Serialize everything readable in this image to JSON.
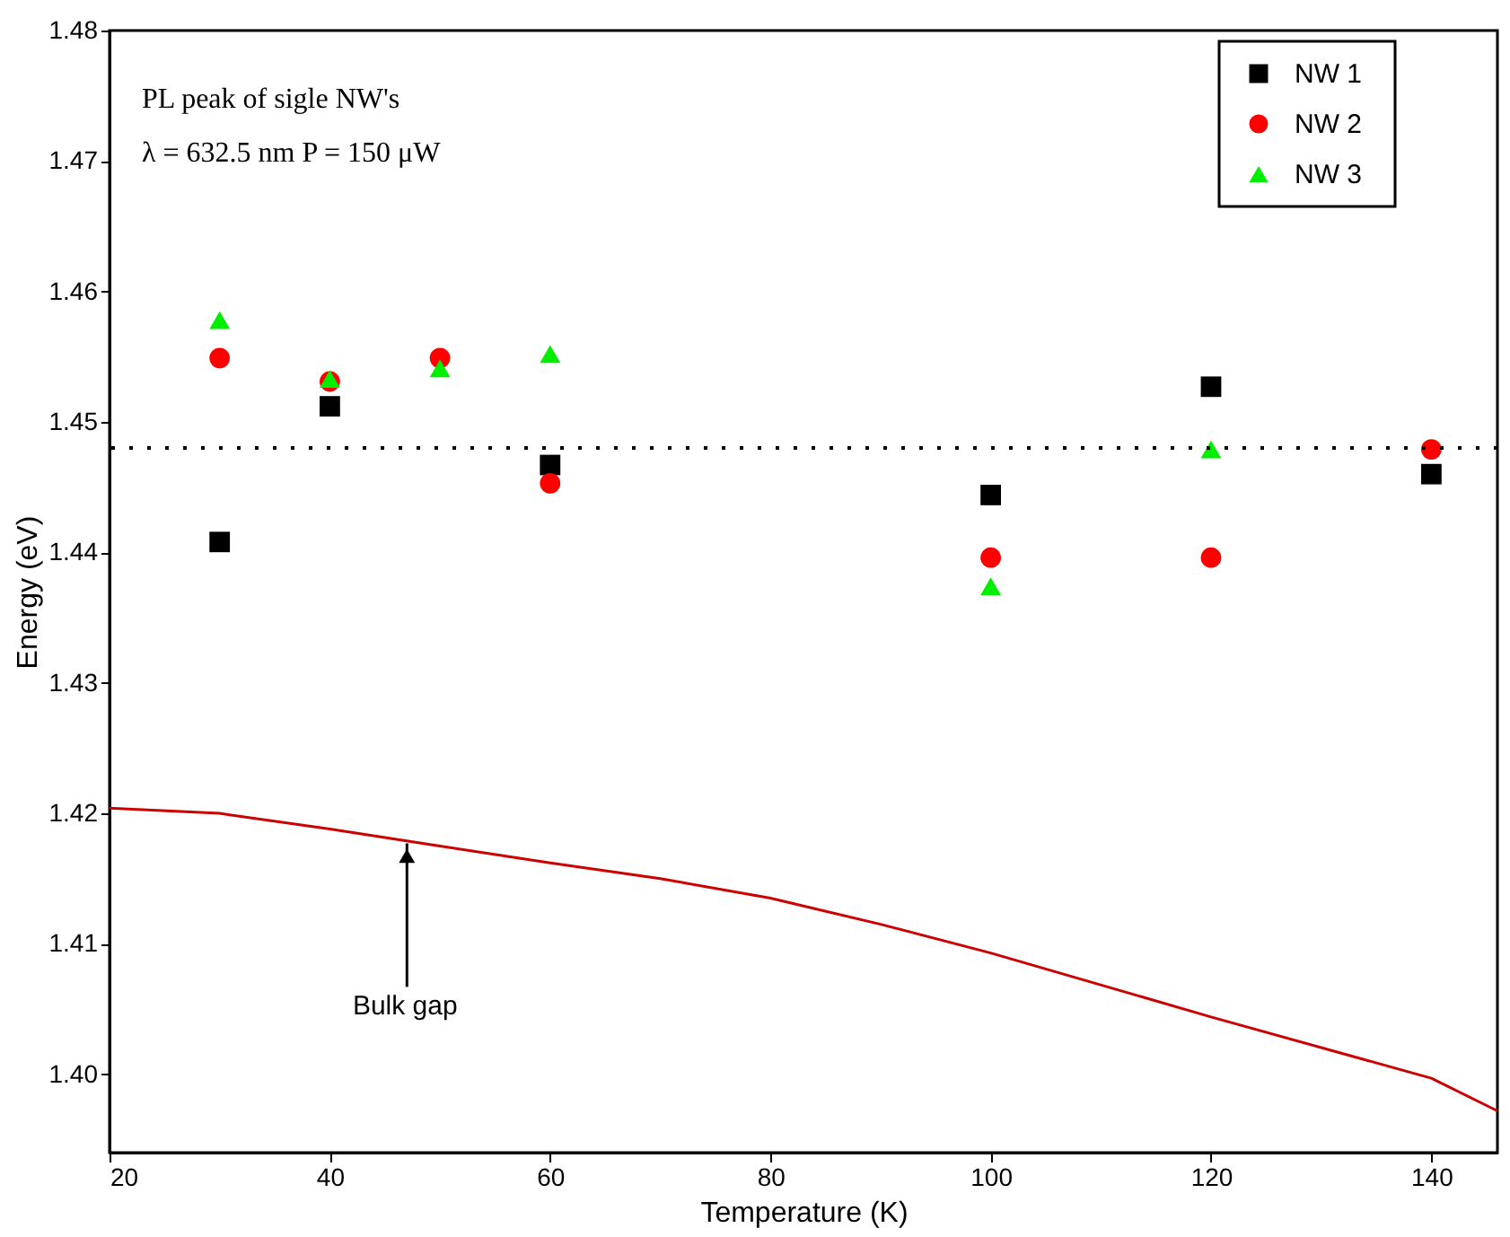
{
  "chart_data": {
    "type": "scatter",
    "xlabel": "Temperature (K)",
    "ylabel": "Energy (eV)",
    "xlim": [
      20,
      146
    ],
    "xticks": [
      20,
      40,
      60,
      80,
      100,
      120,
      140
    ],
    "ylim": [
      1.394,
      1.48
    ],
    "yticks": [
      {
        "value": 1.4,
        "label": "1.40"
      },
      1.41,
      1.42,
      1.43,
      1.44,
      1.45,
      1.46,
      1.47,
      1.48
    ],
    "grid": false,
    "legend": "top right",
    "series": [
      {
        "name": "NW 1",
        "color": "#000000",
        "marker": "square",
        "x": [
          30,
          40,
          60,
          100,
          120,
          140
        ],
        "values": [
          1.4408,
          1.4512,
          1.4467,
          1.4444,
          1.4527,
          1.446
        ]
      },
      {
        "name": "NW 2",
        "color": "#ff0000",
        "marker": "circle",
        "x": [
          30,
          40,
          50,
          60,
          100,
          120,
          140
        ],
        "values": [
          1.4549,
          1.4531,
          1.4549,
          1.4453,
          1.4396,
          1.4396,
          1.4479
        ]
      },
      {
        "name": "NW 3",
        "color": "#00ee00",
        "marker": "triangle",
        "x": [
          30,
          40,
          50,
          60,
          100,
          120
        ],
        "values": [
          1.4578,
          1.4533,
          1.4541,
          1.4552,
          1.4374,
          1.4479
        ]
      },
      {
        "type": "line",
        "color": "#cc0000",
        "marker": "none",
        "line_style": "solid",
        "x": [
          20,
          30,
          40,
          50,
          60,
          70,
          80,
          90,
          100,
          120,
          140,
          146
        ],
        "values": [
          1.4204,
          1.42,
          1.4188,
          1.4175,
          1.4162,
          1.415,
          1.4135,
          1.4115,
          1.4093,
          1.4044,
          1.3997,
          1.3972
        ]
      }
    ],
    "ref_lines": [
      {
        "axis": "y",
        "value": 1.448,
        "color": "#000000",
        "line_style": "dotted"
      }
    ],
    "annotations": [
      "PL peak of sigle NW's",
      "λ =  632.5 nm      P = 150 μW",
      {
        "text": "Bulk gap",
        "x": 47,
        "y": 1.4177
      }
    ]
  }
}
